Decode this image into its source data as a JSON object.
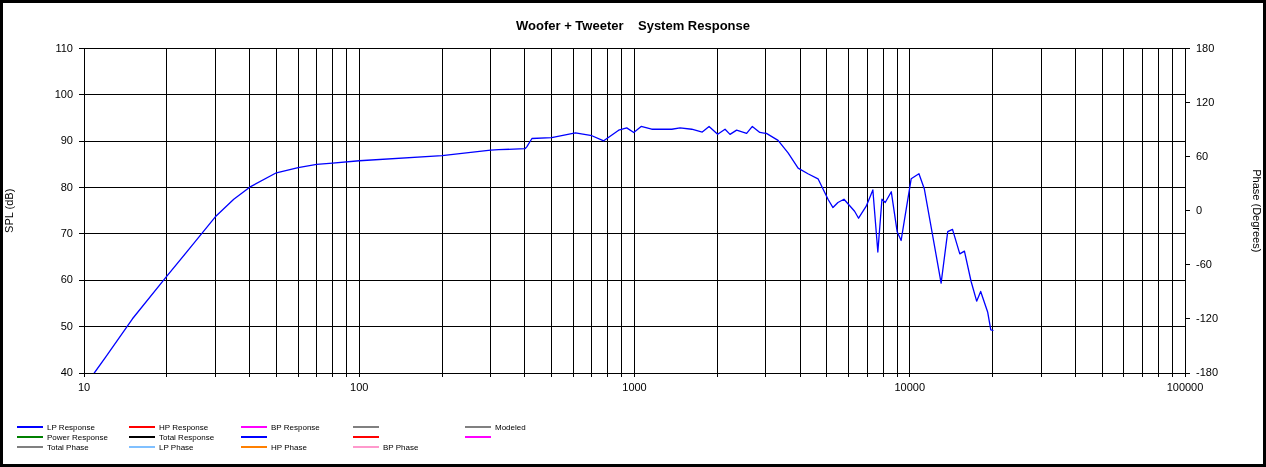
{
  "chart_data": {
    "type": "line",
    "title": "Woofer + Tweeter    System Response",
    "ylabel": "SPL (dB)",
    "y2label": "Phase (Degrees)",
    "log": "x",
    "grid": true,
    "legend": "bottom",
    "xlim": [
      10,
      100000
    ],
    "xticks": [
      10,
      {
        "value": 20,
        "label": null
      },
      {
        "value": 30,
        "label": null
      },
      {
        "value": 40,
        "label": null
      },
      {
        "value": 50,
        "label": null
      },
      {
        "value": 60,
        "label": null
      },
      {
        "value": 70,
        "label": null
      },
      {
        "value": 80,
        "label": null
      },
      {
        "value": 90,
        "label": null
      },
      100,
      {
        "value": 200,
        "label": null
      },
      {
        "value": 300,
        "label": null
      },
      {
        "value": 400,
        "label": null
      },
      {
        "value": 500,
        "label": null
      },
      {
        "value": 600,
        "label": null
      },
      {
        "value": 700,
        "label": null
      },
      {
        "value": 800,
        "label": null
      },
      {
        "value": 900,
        "label": null
      },
      1000,
      {
        "value": 2000,
        "label": null
      },
      {
        "value": 3000,
        "label": null
      },
      {
        "value": 4000,
        "label": null
      },
      {
        "value": 5000,
        "label": null
      },
      {
        "value": 6000,
        "label": null
      },
      {
        "value": 7000,
        "label": null
      },
      {
        "value": 8000,
        "label": null
      },
      {
        "value": 9000,
        "label": null
      },
      10000,
      {
        "value": 20000,
        "label": null
      },
      {
        "value": 30000,
        "label": null
      },
      {
        "value": 40000,
        "label": null
      },
      {
        "value": 50000,
        "label": null
      },
      {
        "value": 60000,
        "label": null
      },
      {
        "value": 70000,
        "label": null
      },
      {
        "value": 80000,
        "label": null
      },
      {
        "value": 90000,
        "label": null
      },
      100000
    ],
    "ylim": [
      40,
      110
    ],
    "yticks": [
      40,
      50,
      60,
      70,
      80,
      90,
      100,
      110
    ],
    "y2lim": [
      -180,
      180
    ],
    "y2ticks": [
      -180,
      -120,
      -60,
      0,
      60,
      120,
      180
    ],
    "series": [
      {
        "name": "LP Response",
        "color": "#0000ff"
      },
      {
        "name": "HP Response",
        "color": "#ff0000"
      },
      {
        "name": "BP Response",
        "color": "#ff00ff"
      },
      {
        "color": "#808080"
      },
      {
        "name": "Modeled",
        "color": "#808080"
      },
      {
        "name": "Power Response",
        "color": "#008000"
      },
      {
        "name": "Total Response",
        "color": "#000000"
      },
      {
        "color": "#0000ff",
        "x": [
          10.9,
          12,
          15,
          20,
          25,
          30,
          35,
          40,
          50,
          60,
          70,
          80,
          100,
          200,
          300,
          321,
          400,
          406,
          424,
          500,
          610,
          700,
          773,
          876,
          937,
          994,
          1057,
          1155,
          1366,
          1464,
          1614,
          1763,
          1866,
          2005,
          2133,
          2223,
          2350,
          2555,
          2680,
          2853,
          3015,
          3323,
          3614,
          3930,
          4267,
          4643,
          5047,
          5261,
          5484,
          5768,
          6304,
          6517,
          6948,
          7345,
          7657,
          7925,
          8146,
          8570,
          9000,
          9305,
          9705,
          10120,
          10800,
          11300,
          12100,
          13000,
          13740,
          14300,
          15200,
          15800,
          16700,
          17500,
          18100,
          19200,
          19700,
          20050
        ],
        "values": [
          40,
          43.5,
          51.7,
          60.9,
          67.9,
          73.7,
          77.5,
          80.1,
          83.2,
          84.3,
          85,
          85.3,
          85.8,
          86.9,
          88.1,
          88.2,
          88.4,
          88.8,
          90.6,
          90.8,
          91.8,
          91.2,
          90.1,
          92.4,
          92.9,
          91.9,
          93.2,
          92.6,
          92.6,
          92.9,
          92.6,
          92,
          93.2,
          91.5,
          92.6,
          91.5,
          92.4,
          91.7,
          93.2,
          91.9,
          91.7,
          90.2,
          87.5,
          84.2,
          83,
          81.9,
          77.5,
          75.7,
          76.8,
          77.5,
          74.9,
          73.4,
          76,
          79.5,
          66.1,
          77.5,
          76.8,
          79.1,
          70.5,
          68.6,
          75.3,
          81.9,
          83,
          79.7,
          69.8,
          59.4,
          70.5,
          71,
          65.7,
          66.3,
          59.8,
          55.5,
          57.6,
          53.1,
          49.3,
          49.2
        ]
      },
      {
        "color": "#ff0000"
      },
      {
        "color": "#ff00ff"
      },
      {
        "name": "Total Phase",
        "color": "#808080"
      },
      {
        "name": "LP Phase",
        "color": "#80c0ff"
      },
      {
        "name": "HP Phase",
        "color": "#ff8000"
      },
      {
        "name": "BP Phase",
        "color": "#ff99cc"
      }
    ]
  }
}
